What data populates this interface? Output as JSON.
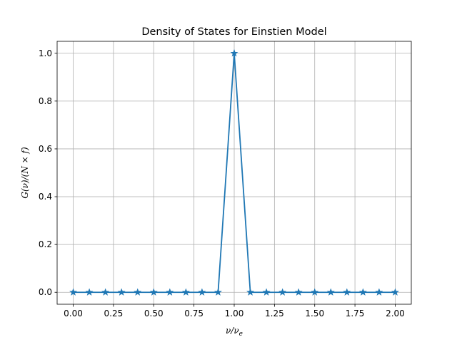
{
  "chart_data": {
    "type": "line",
    "title": "Density of States for Einstien Model",
    "xlabel": "ν/ν",
    "xlabel_sub": "e",
    "ylabel": "G(ν)/(N × f)",
    "xlim": [
      -0.1,
      2.1
    ],
    "ylim": [
      -0.05,
      1.05
    ],
    "grid": true,
    "marker": "star",
    "line_color": "#1f77b4",
    "x_ticks": [
      0.0,
      0.25,
      0.5,
      0.75,
      1.0,
      1.25,
      1.5,
      1.75,
      2.0
    ],
    "x_tick_labels": [
      "0.00",
      "0.25",
      "0.50",
      "0.75",
      "1.00",
      "1.25",
      "1.50",
      "1.75",
      "2.00"
    ],
    "y_ticks": [
      0.0,
      0.2,
      0.4,
      0.6,
      0.8,
      1.0
    ],
    "y_tick_labels": [
      "0.0",
      "0.2",
      "0.4",
      "0.6",
      "0.8",
      "1.0"
    ],
    "series": [
      {
        "x": [
          0.0,
          0.1,
          0.2,
          0.3,
          0.4,
          0.5,
          0.6,
          0.7,
          0.8,
          0.9,
          1.0,
          1.1,
          1.2,
          1.3,
          1.4,
          1.5,
          1.6,
          1.7,
          1.8,
          1.9,
          2.0
        ],
        "values": [
          0,
          0,
          0,
          0,
          0,
          0,
          0,
          0,
          0,
          0,
          1,
          0,
          0,
          0,
          0,
          0,
          0,
          0,
          0,
          0,
          0
        ]
      }
    ]
  }
}
